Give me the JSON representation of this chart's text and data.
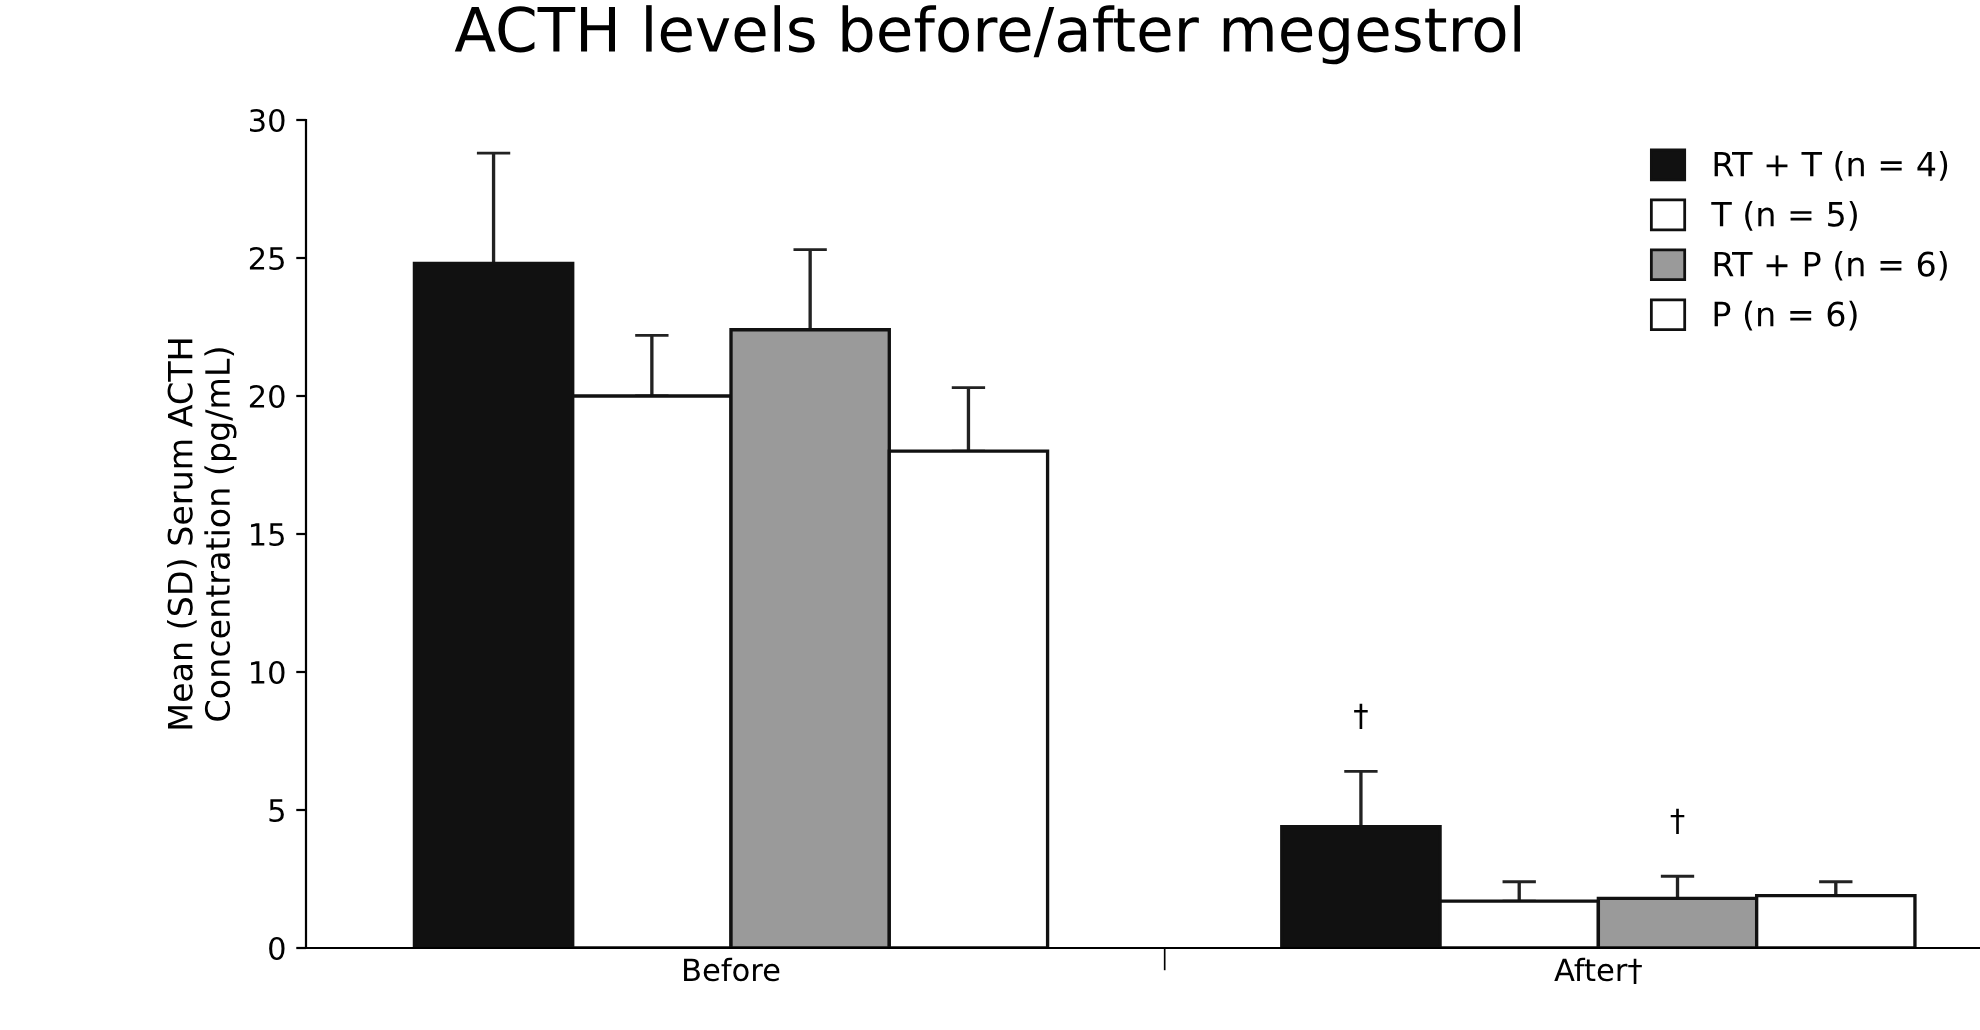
{
  "chart_data": {
    "type": "bar",
    "title": "ACTH levels before/after megestrol",
    "ylabel": "Mean (SD) Serum ACTH\nConcentration (pg/mL)",
    "categories": [
      "Before",
      "After†"
    ],
    "series": [
      {
        "name": "RT + T (n = 4)",
        "color": "#111111",
        "values": [
          24.8,
          4.4
        ],
        "errors": [
          [
            24.8,
            28.8
          ],
          [
            4.4,
            6.4
          ]
        ]
      },
      {
        "name": "T (n = 5)",
        "color": "#ffffff",
        "values": [
          20.0,
          1.7
        ],
        "errors": [
          [
            20.0,
            22.2
          ],
          [
            1.7,
            2.4
          ]
        ]
      },
      {
        "name": "RT + P (n = 6)",
        "color": "#9a9a9a",
        "values": [
          22.4,
          1.8
        ],
        "errors": [
          [
            22.4,
            25.3
          ],
          [
            1.8,
            2.6
          ]
        ]
      },
      {
        "name": "P (n = 6)",
        "color": "#ffffff",
        "values": [
          18.0,
          1.9
        ],
        "errors": [
          [
            18.0,
            20.3
          ],
          [
            1.9,
            2.4
          ]
        ]
      }
    ],
    "annotations": [
      "†",
      "†"
    ],
    "ylim": [
      0,
      30
    ],
    "yticks": [
      0,
      5,
      10,
      15,
      20,
      25,
      30
    ],
    "grid": false,
    "legend": "top right"
  }
}
